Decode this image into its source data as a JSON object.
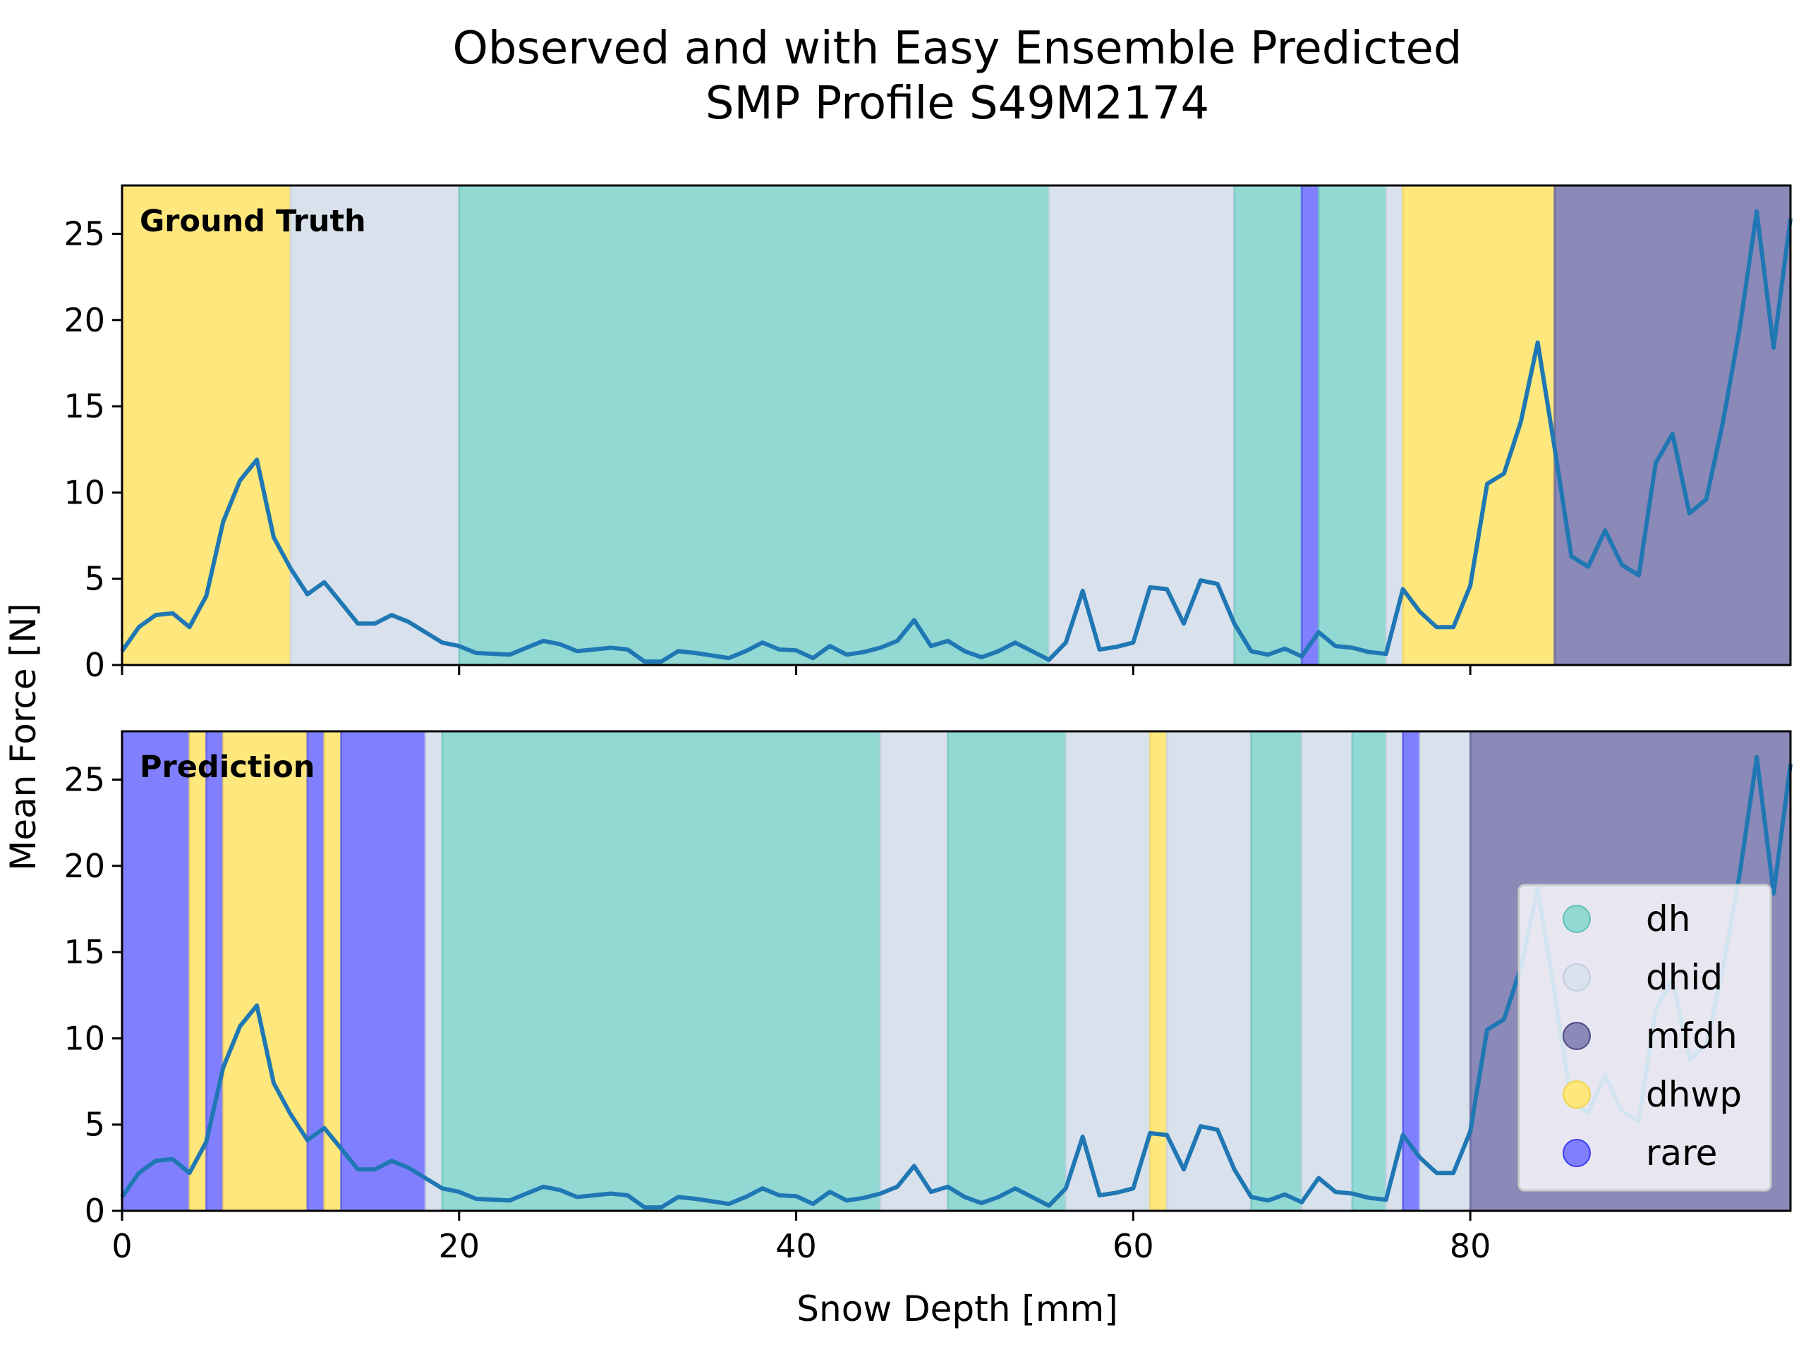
{
  "figure": {
    "title_line1": "Observed and with Easy Ensemble Predicted",
    "title_line2": "SMP Profile S49M2174"
  },
  "chart_data": [
    {
      "type": "line",
      "panel": "Ground Truth",
      "annotation": "Ground Truth",
      "ylabel": "Mean Force [N]",
      "xlabel": "",
      "xlim": [
        0,
        99
      ],
      "ylim": [
        0,
        27.8
      ],
      "xticks": [
        0,
        20,
        40,
        60,
        80
      ],
      "xtick_labels_shown": false,
      "yticks": [
        0,
        5,
        10,
        15,
        20,
        25
      ],
      "segments": [
        {
          "start": 0,
          "end": 10,
          "label": "dhwp"
        },
        {
          "start": 10,
          "end": 20,
          "label": "dhid"
        },
        {
          "start": 20,
          "end": 55,
          "label": "dh"
        },
        {
          "start": 55,
          "end": 66,
          "label": "dhid"
        },
        {
          "start": 66,
          "end": 70,
          "label": "dh"
        },
        {
          "start": 70,
          "end": 71,
          "label": "rare"
        },
        {
          "start": 71,
          "end": 75,
          "label": "dh"
        },
        {
          "start": 75,
          "end": 76,
          "label": "dhid"
        },
        {
          "start": 76,
          "end": 85,
          "label": "dhwp"
        },
        {
          "start": 85,
          "end": 99,
          "label": "mfdh"
        }
      ]
    },
    {
      "type": "line",
      "panel": "Prediction",
      "annotation": "Prediction",
      "ylabel": "",
      "xlabel": "Snow Depth [mm]",
      "xlim": [
        0,
        99
      ],
      "ylim": [
        0,
        27.8
      ],
      "xticks": [
        0,
        20,
        40,
        60,
        80
      ],
      "xtick_labels_shown": true,
      "yticks": [
        0,
        5,
        10,
        15,
        20,
        25
      ],
      "segments": [
        {
          "start": 0,
          "end": 4,
          "label": "rare"
        },
        {
          "start": 4,
          "end": 5,
          "label": "dhwp"
        },
        {
          "start": 5,
          "end": 6,
          "label": "rare"
        },
        {
          "start": 6,
          "end": 11,
          "label": "dhwp"
        },
        {
          "start": 11,
          "end": 12,
          "label": "rare"
        },
        {
          "start": 12,
          "end": 13,
          "label": "dhwp"
        },
        {
          "start": 13,
          "end": 18,
          "label": "rare"
        },
        {
          "start": 18,
          "end": 19,
          "label": "dhid"
        },
        {
          "start": 19,
          "end": 45,
          "label": "dh"
        },
        {
          "start": 45,
          "end": 49,
          "label": "dhid"
        },
        {
          "start": 49,
          "end": 56,
          "label": "dh"
        },
        {
          "start": 56,
          "end": 61,
          "label": "dhid"
        },
        {
          "start": 61,
          "end": 62,
          "label": "dhwp"
        },
        {
          "start": 62,
          "end": 67,
          "label": "dhid"
        },
        {
          "start": 67,
          "end": 70,
          "label": "dh"
        },
        {
          "start": 70,
          "end": 73,
          "label": "dhid"
        },
        {
          "start": 73,
          "end": 75,
          "label": "dh"
        },
        {
          "start": 75,
          "end": 76,
          "label": "dhid"
        },
        {
          "start": 76,
          "end": 77,
          "label": "rare"
        },
        {
          "start": 77,
          "end": 80,
          "label": "dhid"
        },
        {
          "start": 80,
          "end": 99,
          "label": "mfdh"
        }
      ]
    }
  ],
  "series": {
    "x_start": 0,
    "x_step": 1,
    "color": "#1f77b4",
    "values": [
      0.8,
      2.2,
      2.9,
      3.0,
      2.2,
      4.0,
      8.3,
      10.7,
      11.9,
      7.4,
      5.6,
      4.1,
      4.8,
      3.6,
      2.4,
      2.4,
      2.9,
      2.5,
      1.9,
      1.3,
      1.1,
      0.7,
      0.65,
      0.6,
      1.0,
      1.4,
      1.2,
      0.8,
      0.9,
      1.0,
      0.9,
      0.2,
      0.2,
      0.8,
      0.7,
      0.55,
      0.4,
      0.8,
      1.3,
      0.9,
      0.85,
      0.4,
      1.1,
      0.6,
      0.75,
      1.0,
      1.4,
      2.6,
      1.1,
      1.4,
      0.8,
      0.45,
      0.8,
      1.3,
      0.8,
      0.3,
      1.3,
      4.3,
      0.9,
      1.05,
      1.3,
      4.5,
      4.4,
      2.4,
      4.9,
      4.7,
      2.4,
      0.8,
      0.6,
      0.95,
      0.5,
      1.9,
      1.1,
      1.0,
      0.75,
      0.65,
      4.4,
      3.1,
      2.2,
      2.2,
      4.6,
      10.5,
      11.1,
      14.1,
      18.7,
      12.6,
      6.3,
      5.7,
      7.8,
      5.8,
      5.2,
      11.7,
      13.4,
      8.8,
      9.6,
      14.1,
      19.6,
      26.3,
      18.4,
      25.9
    ]
  },
  "classes": {
    "dh": {
      "label": "dh",
      "color": "#92d8d3"
    },
    "dhid": {
      "label": "dhid",
      "color": "#d9e1ec"
    },
    "mfdh": {
      "label": "mfdh",
      "color": "#8a89b7"
    },
    "dhwp": {
      "label": "dhwp",
      "color": "#fee77d"
    },
    "rare": {
      "label": "rare",
      "color": "#8080ff"
    }
  },
  "legend": {
    "placement": "lower-right of bottom panel",
    "order": [
      "dh",
      "dhid",
      "mfdh",
      "dhwp",
      "rare"
    ],
    "edge_colors": {
      "dh": "#5fbfb8",
      "dhid": "#c2cde0",
      "mfdh": "#4b4a85",
      "dhwp": "#f2d44a",
      "rare": "#3c3cf5"
    }
  }
}
